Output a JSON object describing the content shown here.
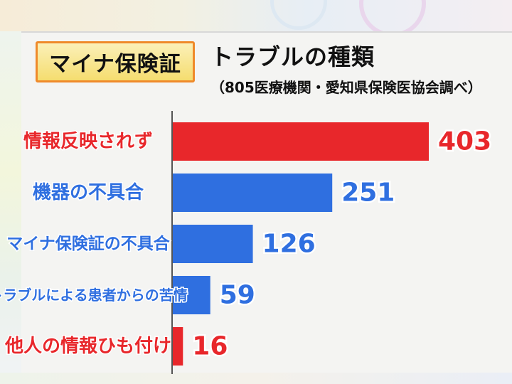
{
  "header": {
    "badge": "マイナ保険証",
    "title": "トラブルの種類",
    "subtitle": "（805医療機関・愛知県保険医協会調べ）"
  },
  "colors": {
    "highlight": "#e8272b",
    "normal": "#2f6fe0",
    "badge_border": "#ef8a2a",
    "badge_fill": "#f5dd6f"
  },
  "chart_data": {
    "type": "bar",
    "orientation": "horizontal",
    "title": "トラブルの種類",
    "subtitle": "（805医療機関・愛知県保険医協会調べ）",
    "categories": [
      "情報反映されず",
      "機器の不具合",
      "マイナ保険証の不具合",
      "トラブルによる患者からの苦情",
      "他人の情報ひも付け"
    ],
    "values": [
      403,
      251,
      126,
      59,
      16
    ],
    "value_labels": [
      "403",
      "251",
      "126",
      "59",
      "16"
    ],
    "highlight": [
      true,
      false,
      false,
      false,
      true
    ],
    "xlim": [
      0,
      403
    ],
    "grid": false,
    "legend": "none"
  }
}
